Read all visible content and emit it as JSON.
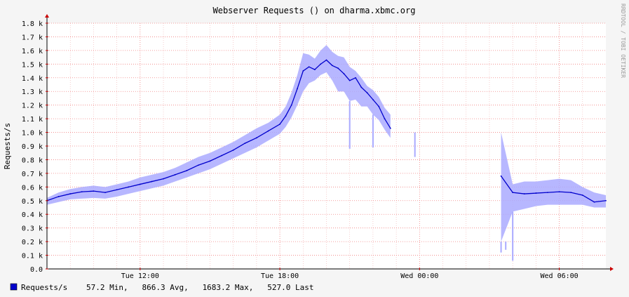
{
  "chart_data": {
    "type": "line",
    "title": "Webserver Requests () on dharma.xbmc.org",
    "ylabel": "Requests/s",
    "watermark": "RRDTOOL / TOBI OETIKER",
    "ylim": [
      0,
      1800
    ],
    "y_ticks": [
      {
        "value": 0,
        "label": "0.0"
      },
      {
        "value": 100,
        "label": "0.1 k"
      },
      {
        "value": 200,
        "label": "0.2 k"
      },
      {
        "value": 300,
        "label": "0.3 k"
      },
      {
        "value": 400,
        "label": "0.4 k"
      },
      {
        "value": 500,
        "label": "0.5 k"
      },
      {
        "value": 600,
        "label": "0.6 k"
      },
      {
        "value": 700,
        "label": "0.7 k"
      },
      {
        "value": 800,
        "label": "0.8 k"
      },
      {
        "value": 900,
        "label": "0.9 k"
      },
      {
        "value": 1000,
        "label": "1.0 k"
      },
      {
        "value": 1100,
        "label": "1.1 k"
      },
      {
        "value": 1200,
        "label": "1.2 k"
      },
      {
        "value": 1300,
        "label": "1.3 k"
      },
      {
        "value": 1400,
        "label": "1.4 k"
      },
      {
        "value": 1500,
        "label": "1.5 k"
      },
      {
        "value": 1600,
        "label": "1.6 k"
      },
      {
        "value": 1700,
        "label": "1.7 k"
      },
      {
        "value": 1800,
        "label": "1.8 k"
      }
    ],
    "x_range": [
      "Tue 08:00",
      "Wed 08:00"
    ],
    "x_ticks": [
      {
        "label": "Tue 12:00",
        "hour": 12
      },
      {
        "label": "Tue 18:00",
        "hour": 18
      },
      {
        "label": "Wed 00:00",
        "hour": 24
      },
      {
        "label": "Wed 06:00",
        "hour": 30
      }
    ],
    "grid": true,
    "colors": {
      "average_line": "#0000cc",
      "range_band": "#aaaaff",
      "major_grid": "#f08080",
      "minor_grid": "#f0b0b0",
      "axis": "#cc0000",
      "legend_swatch": "#0000cc"
    },
    "series": [
      {
        "name": "Requests/s",
        "x_hours": [
          8,
          8.5,
          9,
          9.5,
          10,
          10.5,
          11,
          11.5,
          12,
          12.5,
          13,
          13.5,
          14,
          14.5,
          15,
          15.5,
          16,
          16.5,
          17,
          17.5,
          18,
          18.25,
          18.5,
          18.75,
          19,
          19.25,
          19.5,
          19.75,
          20,
          20.25,
          20.5,
          20.75,
          21,
          21.25,
          21.5,
          21.75,
          22,
          22.25,
          22.5,
          22.75,
          23,
          23.25,
          23.5,
          23.75,
          24,
          24.5,
          25,
          25.5,
          26,
          26.5,
          27,
          27.5,
          28,
          28.5,
          29,
          29.5,
          30,
          30.5,
          31,
          31.5,
          32
        ],
        "values": [
          500,
          530,
          550,
          565,
          570,
          560,
          580,
          600,
          620,
          640,
          660,
          690,
          720,
          760,
          790,
          830,
          870,
          920,
          960,
          1010,
          1060,
          1120,
          1200,
          1320,
          1450,
          1480,
          1460,
          1500,
          1530,
          1490,
          1470,
          1430,
          1380,
          1400,
          1330,
          1290,
          1240,
          1190,
          1100,
          1030,
          null,
          null,
          null,
          null,
          null,
          null,
          null,
          null,
          null,
          null,
          null,
          680,
          560,
          550,
          555,
          560,
          565,
          560,
          540,
          490,
          500
        ],
        "band_min": [
          470,
          490,
          510,
          515,
          520,
          515,
          530,
          550,
          570,
          590,
          610,
          640,
          670,
          700,
          730,
          770,
          810,
          850,
          890,
          940,
          990,
          1040,
          1110,
          1200,
          1300,
          1360,
          1380,
          1420,
          1440,
          1380,
          1300,
          1300,
          1230,
          1240,
          1190,
          1190,
          1130,
          1090,
          1020,
          960,
          null,
          null,
          null,
          null,
          null,
          null,
          null,
          null,
          null,
          null,
          null,
          200,
          420,
          440,
          460,
          470,
          470,
          470,
          470,
          450,
          450
        ],
        "band_max": [
          520,
          560,
          585,
          600,
          610,
          600,
          620,
          640,
          670,
          690,
          710,
          740,
          780,
          820,
          850,
          890,
          930,
          980,
          1030,
          1070,
          1130,
          1190,
          1290,
          1420,
          1580,
          1570,
          1540,
          1600,
          1640,
          1590,
          1560,
          1550,
          1480,
          1450,
          1400,
          1340,
          1310,
          1260,
          1180,
          1130,
          null,
          null,
          null,
          null,
          null,
          null,
          null,
          null,
          null,
          null,
          null,
          1000,
          620,
          640,
          640,
          650,
          660,
          650,
          600,
          560,
          540
        ],
        "spikes_down": [
          {
            "hour": 21.0,
            "min": 880
          },
          {
            "hour": 22.0,
            "min": 890
          },
          {
            "hour": 23.8,
            "min": 820
          },
          {
            "hour": 27.5,
            "min": 120
          },
          {
            "hour": 27.7,
            "min": 140
          },
          {
            "hour": 28.0,
            "min": 60
          }
        ]
      }
    ],
    "legend": {
      "name": "Requests/s",
      "stats": "57.2 Min,   866.3 Avg,   1683.2 Max,   527.0 Last"
    }
  }
}
